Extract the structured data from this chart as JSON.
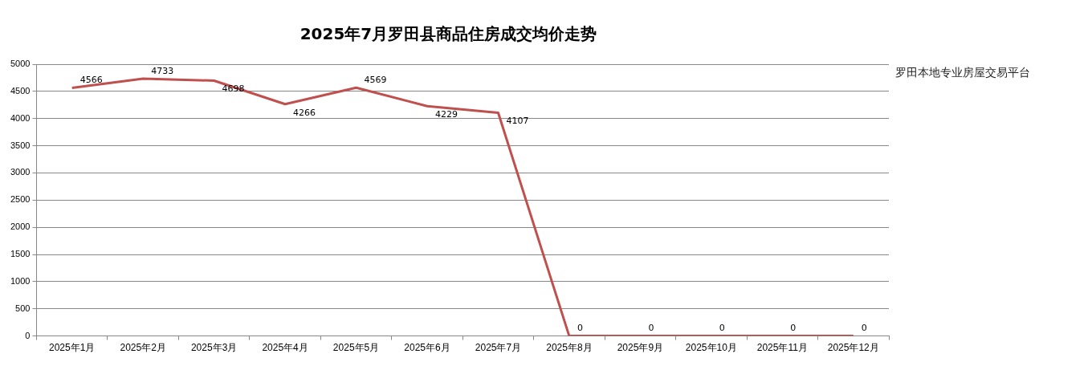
{
  "chart_data": {
    "type": "line",
    "title": "2025年7月罗田县商品住房成交均价走势",
    "categories": [
      "2025年1月",
      "2025年2月",
      "2025年3月",
      "2025年4月",
      "2025年5月",
      "2025年6月",
      "2025年7月",
      "2025年8月",
      "2025年9月",
      "2025年10月",
      "2025年11月",
      "2025年12月"
    ],
    "series": [
      {
        "color": "#c0504d",
        "values": [
          4566,
          4733,
          4698,
          4266,
          4569,
          4229,
          4107,
          0,
          0,
          0,
          0,
          0
        ]
      }
    ],
    "ylim": [
      0,
      5000
    ],
    "yticks": [
      0,
      500,
      1000,
      1500,
      2000,
      2500,
      3000,
      3500,
      4000,
      4500,
      5000
    ],
    "grid": "y",
    "legend": false,
    "marker": "none",
    "line_style": "solid",
    "data_labels": true,
    "annotations": [
      "罗田本地专业房屋交易平台"
    ]
  }
}
